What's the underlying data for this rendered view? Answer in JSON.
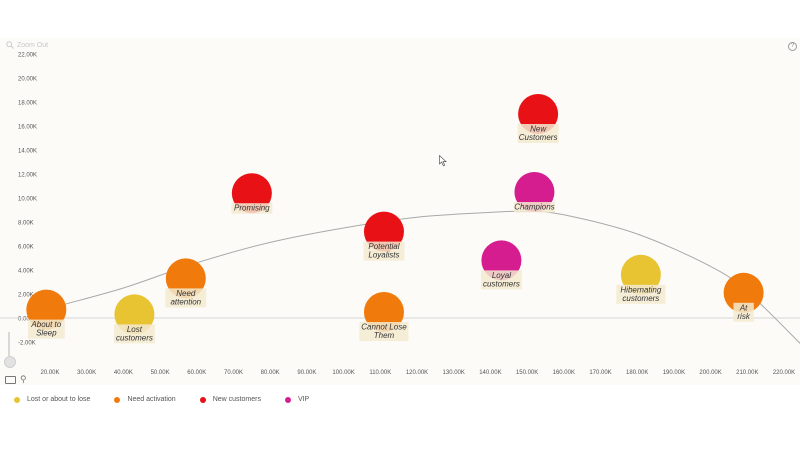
{
  "ui": {
    "zoom_label": "Zoom Out",
    "help_glyph": "?",
    "icons": {
      "zoom": "zoom-out-icon",
      "help": "help-icon",
      "cursor": "mouse-pointer-icon",
      "tool_a": "select-tool-icon",
      "tool_b": "paint-tool-icon"
    }
  },
  "legend": [
    {
      "label": "Lost or about to lose",
      "color": "#e8c433"
    },
    {
      "label": "Need activation",
      "color": "#f07a0c"
    },
    {
      "label": "New customers",
      "color": "#e81116"
    },
    {
      "label": "VIP",
      "color": "#d51d8f"
    }
  ],
  "chart_data": {
    "type": "scatter",
    "title": "",
    "xlabel": "",
    "ylabel": "",
    "xlim": [
      15000,
      225000
    ],
    "ylim": [
      -3000,
      22000
    ],
    "xticks": [
      20000,
      30000,
      40000,
      50000,
      60000,
      70000,
      80000,
      90000,
      100000,
      110000,
      120000,
      130000,
      140000,
      150000,
      160000,
      170000,
      180000,
      190000,
      200000,
      210000,
      220000
    ],
    "xtick_labels": [
      "20.00K",
      "30.00K",
      "40.00K",
      "50.00K",
      "60.00K",
      "70.00K",
      "80.00K",
      "90.00K",
      "100.00K",
      "110.00K",
      "120.00K",
      "130.00K",
      "140.00K",
      "150.00K",
      "160.00K",
      "170.00K",
      "180.00K",
      "190.00K",
      "200.00K",
      "210.00K",
      "220.00K"
    ],
    "yticks": [
      22000,
      20000,
      18000,
      16000,
      14000,
      12000,
      10000,
      8000,
      6000,
      4000,
      2000,
      0,
      -2000
    ],
    "ytick_labels": [
      "22.00K",
      "20.00K",
      "18.00K",
      "16.00K",
      "14.00K",
      "12.00K",
      "10.00K",
      "8.00K",
      "6.00K",
      "4.00K",
      "2.00K",
      "0.00",
      "-2.00K"
    ],
    "grid": false,
    "legend_position": "bottom-left",
    "series": [
      {
        "name": "Lost or about to lose",
        "color": "#e8c433"
      },
      {
        "name": "Need activation",
        "color": "#f07a0c"
      },
      {
        "name": "New customers",
        "color": "#e81116"
      },
      {
        "name": "VIP",
        "color": "#d51d8f"
      }
    ],
    "points": [
      {
        "label": "About to Sleep",
        "series": "Need activation",
        "x": 19000,
        "y": 700
      },
      {
        "label": "Lost customers",
        "series": "Lost or about to lose",
        "x": 43000,
        "y": 300
      },
      {
        "label": "Need attention",
        "series": "Need activation",
        "x": 57000,
        "y": 3300
      },
      {
        "label": "Promising",
        "series": "New customers",
        "x": 75000,
        "y": 10400
      },
      {
        "label": "Potential Loyalists",
        "series": "New customers",
        "x": 111000,
        "y": 7200
      },
      {
        "label": "Cannot Lose Them",
        "series": "Need activation",
        "x": 111000,
        "y": 500
      },
      {
        "label": "Loyal customers",
        "series": "VIP",
        "x": 143000,
        "y": 4800
      },
      {
        "label": "Champions",
        "series": "VIP",
        "x": 152000,
        "y": 10500
      },
      {
        "label": "New Customers",
        "series": "New customers",
        "x": 153000,
        "y": 17000
      },
      {
        "label": "Hibernating customers",
        "series": "Lost or about to lose",
        "x": 181000,
        "y": 3600
      },
      {
        "label": "At risk",
        "series": "Need activation",
        "x": 209000,
        "y": 2100
      }
    ],
    "trend_line": {
      "x": [
        15000,
        20000,
        40000,
        60000,
        80000,
        100000,
        120000,
        140000,
        150000,
        160000,
        180000,
        200000,
        210000,
        225000
      ],
      "y": [
        200,
        800,
        2500,
        4600,
        6300,
        7500,
        8400,
        8800,
        8900,
        8600,
        7000,
        4300,
        2200,
        -2300
      ]
    }
  }
}
